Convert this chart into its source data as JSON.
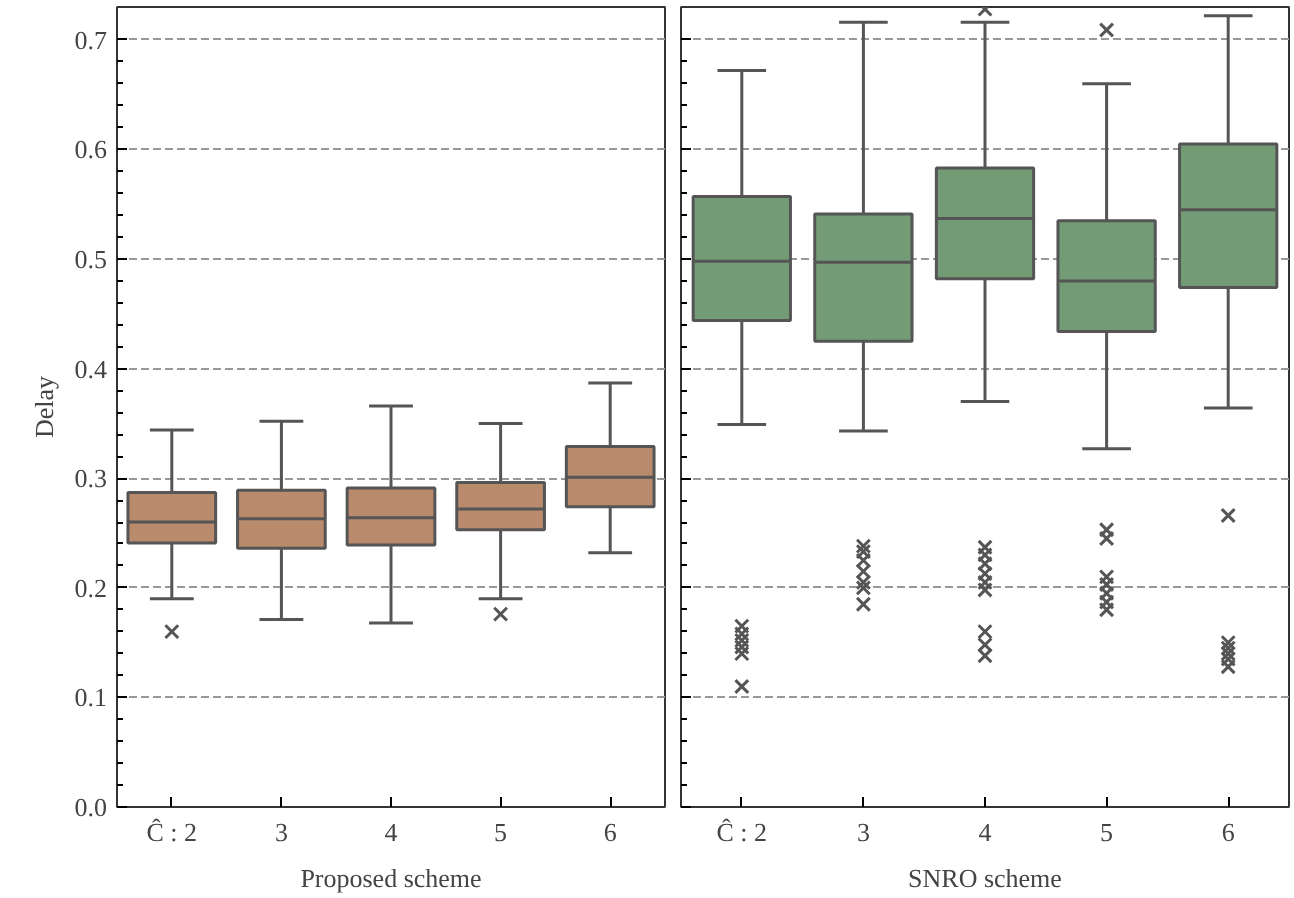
{
  "chart_data": [
    {
      "type": "box",
      "xlabel": "Proposed scheme",
      "ylabel": "Delay",
      "categories": [
        "Ĉ : 2",
        "3",
        "4",
        "5",
        "6"
      ],
      "ylim": [
        0,
        0.73
      ],
      "yticks": [
        {
          "value": 0,
          "label": "0.0"
        },
        0.1,
        0.2,
        0.3,
        0.4,
        0.5,
        0.6,
        0.7
      ],
      "grid": "y",
      "marker": "cross",
      "series": [
        {
          "color": "#b98a6c",
          "boxes": [
            {
              "low": 0.19,
              "q1": 0.241,
              "median": 0.26,
              "q3": 0.287,
              "high": 0.344,
              "outliers": [
                0.16
              ]
            },
            {
              "low": 0.171,
              "q1": 0.236,
              "median": 0.263,
              "q3": 0.289,
              "high": 0.352
            },
            {
              "low": 0.168,
              "q1": 0.239,
              "median": 0.264,
              "q3": 0.291,
              "high": 0.366
            },
            {
              "low": 0.19,
              "q1": 0.253,
              "median": 0.272,
              "q3": 0.296,
              "high": 0.35,
              "outliers": [
                0.176
              ]
            },
            {
              "low": 0.232,
              "q1": 0.274,
              "median": 0.301,
              "q3": 0.329,
              "high": 0.387
            }
          ]
        }
      ]
    },
    {
      "type": "box",
      "xlabel": "SNRO scheme",
      "categories": [
        "Ĉ : 2",
        "3",
        "4",
        "5",
        "6"
      ],
      "ylim": [
        0,
        0.73
      ],
      "yticks": [
        {
          "value": 0,
          "label": null
        },
        0.1,
        0.2,
        0.3,
        0.4,
        0.5,
        0.6,
        0.7
      ],
      "grid": "y",
      "marker": "cross",
      "tick_labels": "x",
      "series": [
        {
          "color": "#739b76",
          "boxes": [
            {
              "low": 0.349,
              "q1": 0.444,
              "median": 0.498,
              "q3": 0.557,
              "high": 0.672,
              "outliers": [
                0.165,
                0.158,
                0.152,
                0.146,
                0.14,
                0.11
              ]
            },
            {
              "low": 0.343,
              "q1": 0.425,
              "median": 0.497,
              "q3": 0.541,
              "high": 0.716,
              "outliers": [
                0.238,
                0.233,
                0.225,
                0.215,
                0.205,
                0.2,
                0.185
              ]
            },
            {
              "low": 0.37,
              "q1": 0.482,
              "median": 0.537,
              "q3": 0.583,
              "high": 0.716,
              "outliers": [
                0.728,
                0.237,
                0.23,
                0.222,
                0.213,
                0.205,
                0.198,
                0.16,
                0.148,
                0.138
              ]
            },
            {
              "low": 0.327,
              "q1": 0.434,
              "median": 0.48,
              "q3": 0.535,
              "high": 0.66,
              "outliers": [
                0.709,
                0.253,
                0.245,
                0.21,
                0.203,
                0.195,
                0.187,
                0.18
              ]
            },
            {
              "low": 0.364,
              "q1": 0.474,
              "median": 0.545,
              "q3": 0.605,
              "high": 0.722,
              "outliers": [
                0.266,
                0.15,
                0.145,
                0.14,
                0.135,
                0.128
              ]
            }
          ]
        }
      ]
    }
  ]
}
